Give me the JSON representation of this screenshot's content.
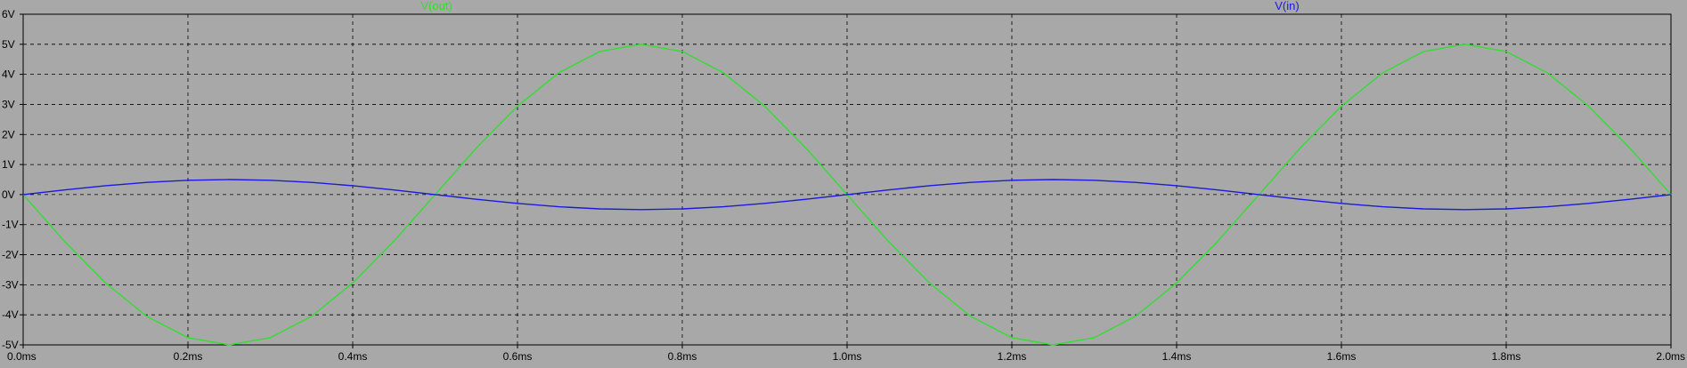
{
  "chart_data": {
    "type": "line",
    "title": "",
    "xlabel": "",
    "ylabel": "",
    "xlim": [
      0.0,
      2.0
    ],
    "ylim": [
      -5,
      5
    ],
    "x_unit": "ms",
    "y_unit": "V",
    "grid": true,
    "legend_placement": "top",
    "x_ticks": [
      "0.0ms",
      "0.2ms",
      "0.4ms",
      "0.6ms",
      "0.8ms",
      "1.0ms",
      "1.2ms",
      "1.4ms",
      "1.6ms",
      "1.8ms",
      "2.0ms"
    ],
    "y_ticks": [
      "6V",
      "5V",
      "4V",
      "3V",
      "2V",
      "1V",
      "0V",
      "-1V",
      "-2V",
      "-3V",
      "-4V",
      "-5V"
    ],
    "series": [
      {
        "name": "V(out)",
        "color": "#33dd33",
        "x": [
          0.0,
          0.05,
          0.1,
          0.15,
          0.2,
          0.25,
          0.3,
          0.35,
          0.4,
          0.45,
          0.5,
          0.55,
          0.6,
          0.65,
          0.7,
          0.75,
          0.8,
          0.85,
          0.9,
          0.95,
          1.0,
          1.05,
          1.1,
          1.15,
          1.2,
          1.25,
          1.3,
          1.35,
          1.4,
          1.45,
          1.5,
          1.55,
          1.6,
          1.65,
          1.7,
          1.75,
          1.8,
          1.85,
          1.9,
          1.95,
          2.0
        ],
        "y": [
          0.0,
          -1.55,
          -2.94,
          -4.05,
          -4.76,
          -5.0,
          -4.76,
          -4.05,
          -2.94,
          -1.55,
          0.0,
          1.55,
          2.94,
          4.05,
          4.76,
          5.0,
          4.76,
          4.05,
          2.94,
          1.55,
          0.0,
          -1.55,
          -2.94,
          -4.05,
          -4.76,
          -5.0,
          -4.76,
          -4.05,
          -2.94,
          -1.55,
          0.0,
          1.55,
          2.94,
          4.05,
          4.76,
          5.0,
          4.76,
          4.05,
          2.94,
          1.55,
          0.0
        ]
      },
      {
        "name": "V(in)",
        "color": "#1a1ae0",
        "x": [
          0.0,
          0.05,
          0.1,
          0.15,
          0.2,
          0.25,
          0.3,
          0.35,
          0.4,
          0.45,
          0.5,
          0.55,
          0.6,
          0.65,
          0.7,
          0.75,
          0.8,
          0.85,
          0.9,
          0.95,
          1.0,
          1.05,
          1.1,
          1.15,
          1.2,
          1.25,
          1.3,
          1.35,
          1.4,
          1.45,
          1.5,
          1.55,
          1.6,
          1.65,
          1.7,
          1.75,
          1.8,
          1.85,
          1.9,
          1.95,
          2.0
        ],
        "y": [
          0.0,
          0.155,
          0.294,
          0.405,
          0.476,
          0.5,
          0.476,
          0.405,
          0.294,
          0.155,
          0.0,
          -0.155,
          -0.294,
          -0.405,
          -0.476,
          -0.5,
          -0.476,
          -0.405,
          -0.294,
          -0.155,
          0.0,
          0.155,
          0.294,
          0.405,
          0.476,
          0.5,
          0.476,
          0.405,
          0.294,
          0.155,
          0.0,
          -0.155,
          -0.294,
          -0.405,
          -0.476,
          -0.5,
          -0.476,
          -0.405,
          -0.294,
          -0.155,
          0.0
        ]
      }
    ]
  }
}
